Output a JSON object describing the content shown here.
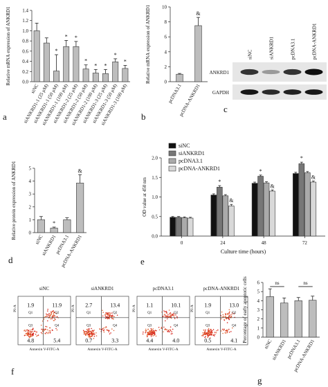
{
  "panels": {
    "a": "a",
    "b": "b",
    "c": "c",
    "d": "d",
    "e": "e",
    "f": "f",
    "g": "g"
  },
  "chart_data": [
    {
      "id": "a",
      "type": "bar",
      "ylabel": "Relative mRNA expression of ANKRD1",
      "ylim": [
        0,
        1.4
      ],
      "yticks": [
        0.0,
        0.2,
        0.4,
        0.6,
        0.8,
        1.0,
        1.2,
        1.4
      ],
      "categories": [
        "siNC",
        "siANKRD1-1 (25 μM)",
        "siANKRD1-1 (50 μM)",
        "siANKRD1-1 (100 μM)",
        "siANKRD1-2 (25 μM)",
        "siANKRD1-2 (50 μM)",
        "siANKRD1-2 (100 μM)",
        "siANKRD1-3 (25 μM)",
        "siANKRD1-3 (50 μM)",
        "siANKRD1-3 (100 μM)"
      ],
      "values": [
        1.0,
        0.76,
        0.21,
        0.69,
        0.69,
        0.25,
        0.17,
        0.16,
        0.39,
        0.26
      ],
      "errors": [
        0.15,
        0.1,
        0.32,
        0.12,
        0.1,
        0.08,
        0.07,
        0.08,
        0.06,
        0.06
      ],
      "annotations": [
        "",
        "",
        "*",
        "*",
        "*",
        "*",
        "*",
        "*",
        "*",
        "*"
      ]
    },
    {
      "id": "b",
      "type": "bar",
      "ylabel": "Relative mRNA expression of ANKRD1",
      "ylim": [
        0,
        10
      ],
      "yticks": [
        0,
        2,
        4,
        6,
        8,
        10
      ],
      "categories": [
        "pcDNA3.1",
        "pcDNA-ANKRD1"
      ],
      "values": [
        1.0,
        7.5
      ],
      "errors": [
        0.1,
        1.1
      ],
      "annotations": [
        "",
        "&"
      ]
    },
    {
      "id": "d",
      "type": "bar",
      "ylabel": "Relative protein expression of ANKRD1",
      "ylim": [
        0,
        5
      ],
      "yticks": [
        0,
        1,
        2,
        3,
        4,
        5
      ],
      "categories": [
        "siNC",
        "siANKRD1",
        "pcDNA3.1",
        "pcDNA-ANKRD1"
      ],
      "values": [
        1.0,
        0.35,
        1.0,
        3.85
      ],
      "errors": [
        0.25,
        0.08,
        0.15,
        0.65
      ],
      "annotations": [
        "",
        "*",
        "",
        "&"
      ]
    },
    {
      "id": "e",
      "type": "bar",
      "xlabel": "Culture time (hours)",
      "ylabel": "OD value at 450 nm",
      "ylim": [
        0,
        2.0
      ],
      "yticks": [
        0.0,
        0.5,
        1.0,
        1.5,
        2.0
      ],
      "categories": [
        "0",
        "24",
        "48",
        "72"
      ],
      "legend": "top-left",
      "series": [
        {
          "name": "siNC",
          "color": "#111111",
          "values": [
            0.48,
            1.05,
            1.35,
            1.6
          ],
          "errors": [
            0.02,
            0.03,
            0.03,
            0.03
          ]
        },
        {
          "name": "siANKRD1",
          "color": "#777777",
          "values": [
            0.48,
            1.25,
            1.53,
            1.85
          ],
          "errors": [
            0.02,
            0.04,
            0.03,
            0.04
          ]
        },
        {
          "name": "pcDNA3.1",
          "color": "#aaaaaa",
          "values": [
            0.47,
            1.03,
            1.36,
            1.62
          ],
          "errors": [
            0.02,
            0.03,
            0.03,
            0.03
          ]
        },
        {
          "name": "pcDNA-ANKRD1",
          "color": "#d9d9d9",
          "values": [
            0.46,
            0.77,
            1.15,
            1.38
          ],
          "errors": [
            0.02,
            0.04,
            0.03,
            0.03
          ]
        }
      ],
      "annotations": [
        {
          "category": "24",
          "series": "siANKRD1",
          "text": "*"
        },
        {
          "category": "24",
          "series": "pcDNA-ANKRD1",
          "text": "&"
        },
        {
          "category": "48",
          "series": "siANKRD1",
          "text": "*"
        },
        {
          "category": "48",
          "series": "pcDNA-ANKRD1",
          "text": "&"
        },
        {
          "category": "72",
          "series": "siANKRD1",
          "text": "*"
        },
        {
          "category": "72",
          "series": "pcDNA-ANKRD1",
          "text": "&"
        }
      ]
    },
    {
      "id": "f",
      "type": "scatter",
      "xlabel": "Annexin V-FITC-A",
      "ylabel": "PI-A",
      "quadrant_labels": [
        "Q1",
        "Q2",
        "Q3",
        "Q4"
      ],
      "plots": [
        {
          "name": "siNC",
          "q1": "1.9",
          "q2": "11.9",
          "q3": "4.8",
          "q4": "5.4"
        },
        {
          "name": "siANKRD1",
          "q1": "2.7",
          "q2": "13.4",
          "q3": "0.7",
          "q4": "3.3"
        },
        {
          "name": "pcDNA3.1",
          "q1": "1.1",
          "q2": "10.1",
          "q3": "4.4",
          "q4": "4.0"
        },
        {
          "name": "pcDNA-ANKRD1",
          "q1": "1.9",
          "q2": "13.0",
          "q3": "0.5",
          "q4": "4.1"
        }
      ]
    },
    {
      "id": "g",
      "type": "bar",
      "ylabel": "Percentage of early apoptotic cells",
      "ylim": [
        0,
        6
      ],
      "yticks": [
        0,
        1,
        2,
        3,
        4,
        5,
        6
      ],
      "categories": [
        "siNC",
        "siANKRD1",
        "pcDNA3.1",
        "pcDNA-ANKRD1"
      ],
      "values": [
        4.45,
        3.75,
        4.0,
        4.05
      ],
      "errors": [
        0.85,
        0.55,
        0.35,
        0.45
      ],
      "comparisons": [
        {
          "from": 0,
          "to": 1,
          "text": "ns"
        },
        {
          "from": 2,
          "to": 3,
          "text": "ns"
        }
      ]
    }
  ],
  "western_blot": {
    "lanes": [
      "siNC",
      "siANKRD1",
      "pcDNA3.1",
      "pcDNA-ANKRD1"
    ],
    "rows": [
      {
        "label": "ANKRD1",
        "intensities": [
          0.8,
          0.25,
          0.8,
          1.0
        ]
      },
      {
        "label": "GAPDH",
        "intensities": [
          0.95,
          0.85,
          0.9,
          0.95
        ]
      }
    ]
  }
}
